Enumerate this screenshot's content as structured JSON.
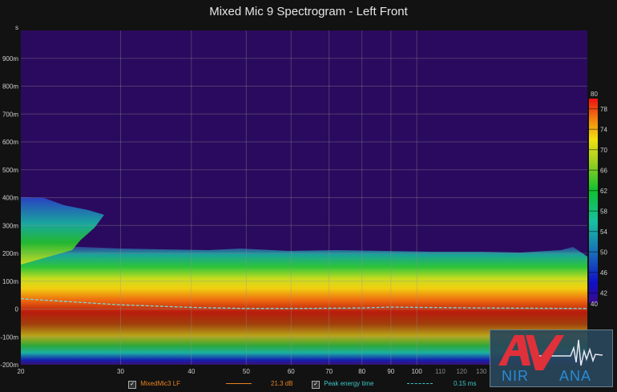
{
  "title": "Mixed Mic 9 Spectrogram - Left Front",
  "chart_data": {
    "type": "heatmap",
    "title": "Mixed Mic 9 Spectrogram - Left Front",
    "xscale": "log",
    "xlim": [
      20,
      200
    ],
    "ylim": [
      -0.2,
      1.0
    ],
    "x_ticks": [
      "20",
      "30",
      "40",
      "50",
      "60",
      "70",
      "80",
      "90",
      "100",
      "110",
      "120",
      "130"
    ],
    "y_ticks": [
      "s",
      "900m",
      "800m",
      "700m",
      "600m",
      "500m",
      "400m",
      "300m",
      "200m",
      "100m",
      "0",
      "-100m",
      "-200m"
    ],
    "y_tick_values": [
      1.0,
      0.9,
      0.8,
      0.7,
      0.6,
      0.5,
      0.4,
      0.3,
      0.2,
      0.1,
      0,
      -0.1,
      -0.2
    ],
    "colorbar": {
      "min": 40,
      "max": 80,
      "unit": "dB",
      "ticks": [
        "80",
        "78",
        "74",
        "70",
        "66",
        "62",
        "58",
        "54",
        "50",
        "46",
        "42",
        "40"
      ]
    },
    "grid": true,
    "peak_energy_time": {
      "x": [
        20,
        25,
        30,
        40,
        50,
        60,
        70,
        80,
        90,
        100,
        130,
        160,
        200
      ],
      "y": [
        0.037,
        0.025,
        0.015,
        0.006,
        0.002,
        0.002,
        0.003,
        0.004,
        0.007,
        0.006,
        0.004,
        0.003,
        0.002
      ]
    },
    "legend": [
      {
        "label": "MixedMic3 LF",
        "value": "21.3 dB",
        "color": "#e8821e",
        "style": "solid",
        "checked": true
      },
      {
        "label": "Peak energy time",
        "value": "0.15 ms",
        "color": "#3cc6c8",
        "style": "dashed",
        "checked": true
      }
    ]
  },
  "logo": {
    "text": "AV NIRVANA"
  }
}
